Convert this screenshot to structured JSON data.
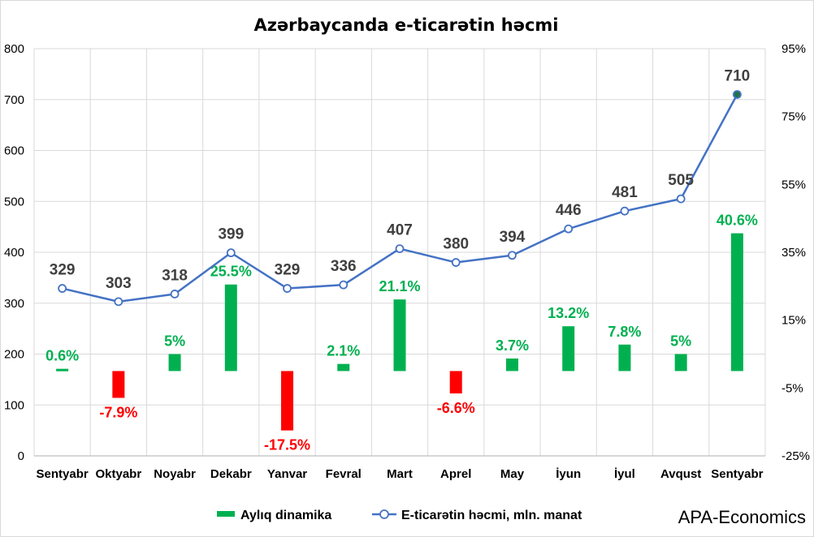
{
  "chart_data": {
    "type": "bar+line",
    "title": "Azərbaycanda e-ticarətin həcmi",
    "categories": [
      "Sentyabr",
      "Oktyabr",
      "Noyabr",
      "Dekabr",
      "Yanvar",
      "Fevral",
      "Mart",
      "Aprel",
      "May",
      "İyun",
      "İyul",
      "Avqust",
      "Sentyabr"
    ],
    "series": [
      {
        "name": "E-ticarətin həcmi, mln. manat",
        "type": "line",
        "axis": "left",
        "color": "#4472c4",
        "values": [
          329,
          303,
          318,
          399,
          329,
          336,
          407,
          380,
          394,
          446,
          481,
          505,
          710
        ],
        "labels": [
          "329",
          "303",
          "318",
          "399",
          "329",
          "336",
          "407",
          "380",
          "394",
          "446",
          "481",
          "505",
          "710"
        ]
      },
      {
        "name": "Aylıq dinamika",
        "type": "bar",
        "axis": "right",
        "values": [
          0.6,
          -7.9,
          5,
          25.5,
          -17.5,
          2.1,
          21.1,
          -6.6,
          3.7,
          13.2,
          7.8,
          5,
          40.6
        ],
        "labels": [
          "0.6%",
          "-7.9%",
          "5%",
          "25.5%",
          "-17.5%",
          "2.1%",
          "21.1%",
          "-6.6%",
          "3.7%",
          "13.2%",
          "7.8%",
          "5%",
          "40.6%"
        ]
      }
    ],
    "y_left": {
      "min": 0,
      "max": 800,
      "ticks": [
        "0",
        "100",
        "200",
        "300",
        "400",
        "500",
        "600",
        "700",
        "800"
      ]
    },
    "y_right": {
      "min": -25,
      "max": 95,
      "ticks": [
        "-25%",
        "-5%",
        "15%",
        "35%",
        "55%",
        "75%",
        "95%"
      ]
    },
    "grid": true,
    "legend_position": "bottom",
    "colors": {
      "positive": "#00b050",
      "negative": "#ff0000",
      "line": "#4472c4",
      "grid": "#d9d9d9",
      "value_label": "#404040"
    }
  },
  "legend": {
    "bar_label": "Aylıq dinamika",
    "line_label": "E-ticarətin həcmi, mln. manat"
  },
  "watermark": "APA-Economics"
}
